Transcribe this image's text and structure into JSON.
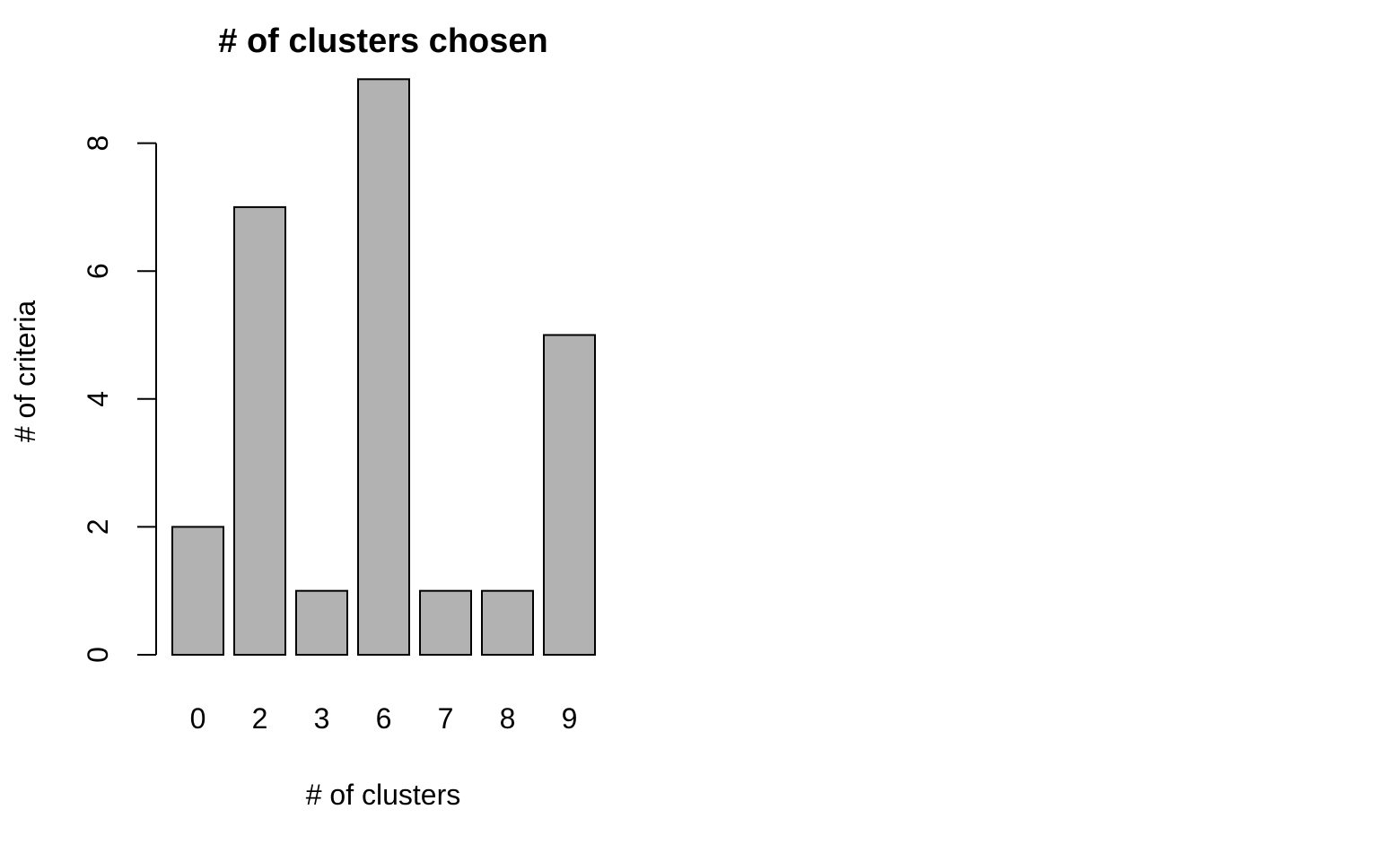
{
  "chart_data": {
    "type": "bar",
    "title": "# of clusters chosen",
    "xlabel": "# of clusters",
    "ylabel": "# of criteria",
    "categories": [
      "0",
      "2",
      "3",
      "6",
      "7",
      "8",
      "9"
    ],
    "values": [
      2,
      7,
      1,
      9,
      1,
      1,
      5
    ],
    "ylim": [
      0,
      9
    ],
    "yticks": [
      0,
      2,
      4,
      6,
      8
    ],
    "grid": false,
    "bar_color": "#b2b2b2",
    "bar_border_color": "#000000"
  }
}
